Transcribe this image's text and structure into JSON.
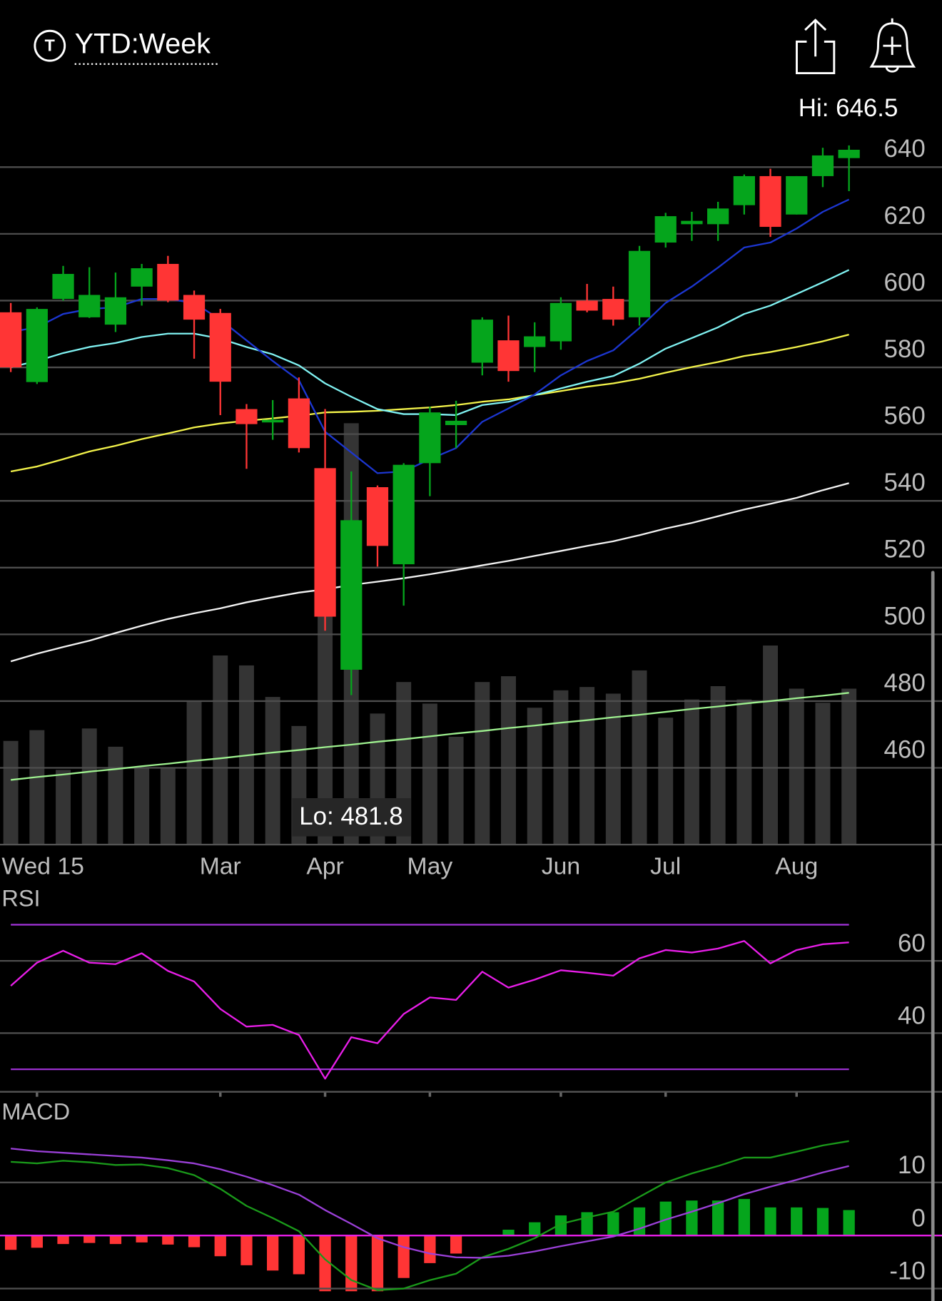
{
  "toolbar": {
    "icon_letter": "T",
    "range": "YTD:Week"
  },
  "chart_data": [
    {
      "type": "candlestick",
      "categories": [
        null,
        "Wed 15",
        null,
        null,
        null,
        null,
        null,
        null,
        "Mar",
        null,
        null,
        null,
        "Apr",
        null,
        null,
        null,
        "May",
        null,
        null,
        null,
        null,
        "Jun",
        null,
        null,
        null,
        "Jul",
        null,
        null,
        null,
        null,
        "Aug",
        null,
        null
      ],
      "open": [
        596.5,
        575.6,
        600.5,
        595,
        592.8,
        604.2,
        611,
        601.7,
        596.3,
        567.5,
        563.5,
        570.7,
        549.8,
        489.4,
        544.1,
        521,
        551.3,
        562.7,
        581.4,
        588.1,
        586.1,
        587.8,
        600,
        600.5,
        595,
        617.4,
        622.9,
        622.9,
        628.6,
        637.3,
        625.8,
        637.3,
        642.7
      ],
      "high": [
        599.3,
        598,
        610.4,
        610,
        608.4,
        611,
        613.4,
        603,
        597.5,
        569,
        570.2,
        577,
        567.5,
        548.8,
        544.6,
        551.3,
        568.2,
        570,
        595,
        595.5,
        593.5,
        601,
        605,
        604.2,
        616.4,
        626.3,
        626.6,
        629.6,
        637.8,
        639.5,
        637.3,
        645.8,
        646.5
      ],
      "low": [
        578.6,
        575,
        600,
        594.8,
        590.6,
        598.5,
        599.5,
        582.6,
        565.7,
        549.6,
        558.3,
        554.5,
        501.1,
        481.8,
        520.3,
        508.6,
        541.4,
        555.8,
        577.6,
        575.7,
        578.6,
        585.3,
        596.5,
        592.5,
        592.5,
        615.9,
        617.9,
        617.9,
        625.8,
        619.1,
        625.8,
        634,
        632.8
      ],
      "close": [
        580,
        597.5,
        608,
        601.7,
        601,
        609.7,
        600,
        594.3,
        575.7,
        563,
        564.3,
        555.8,
        505.3,
        534.2,
        526.5,
        550.8,
        566.5,
        564,
        594.3,
        578.9,
        589.3,
        599.3,
        597,
        594.3,
        614.9,
        625.3,
        623.9,
        627.6,
        637.3,
        622.1,
        637.3,
        643.5,
        645.2
      ],
      "up_color": "#05a51c",
      "down_color": "#ff3535",
      "series": [
        {
          "color": "#f2f2f2",
          "values": [
            491.9,
            494.2,
            496.2,
            498.1,
            500.4,
            502.6,
            504.6,
            506.3,
            507.8,
            509.6,
            511.1,
            512.5,
            513.5,
            514.8,
            515.8,
            516.8,
            518,
            519.3,
            520.7,
            522,
            523.5,
            525,
            526.5,
            527.9,
            529.7,
            531.7,
            533.4,
            535.4,
            537.4,
            539.1,
            540.9,
            543.2,
            545.3
          ]
        },
        {
          "color": "#f2f24a",
          "values": [
            548.8,
            550.3,
            552.5,
            554.8,
            556.5,
            558.5,
            560.2,
            562,
            563.2,
            564,
            564.7,
            565.5,
            566.5,
            566.7,
            567,
            567.5,
            568,
            568.7,
            569.7,
            570.4,
            571.7,
            572.9,
            574.2,
            575.2,
            576.6,
            578.4,
            580.1,
            581.6,
            583.4,
            584.6,
            586.1,
            587.8,
            589.8
          ]
        },
        {
          "color": "#80f2f2",
          "values": [
            580.1,
            581.9,
            584.3,
            586.1,
            587.3,
            589.1,
            590.1,
            590.1,
            588.6,
            586.1,
            583.9,
            580.6,
            575.2,
            571.2,
            567.5,
            566,
            566,
            565.7,
            568.7,
            569.7,
            571.7,
            573.7,
            575.7,
            577.4,
            581.1,
            585.6,
            588.8,
            592,
            596,
            598.5,
            602,
            605.5,
            609.2
          ]
        },
        {
          "color": "#1c36d0",
          "values": [
            590.6,
            592,
            596,
            597.5,
            598,
            600.5,
            600.5,
            599.3,
            594.3,
            588.1,
            581.9,
            576.1,
            560.7,
            554.5,
            548.3,
            548.8,
            552.5,
            555.8,
            563.7,
            567.7,
            571.9,
            577.6,
            581.9,
            585.1,
            591.8,
            599.3,
            604.2,
            609.9,
            615.9,
            617.4,
            621.6,
            626.6,
            630.3
          ]
        }
      ],
      "volume": {
        "color": "#343434",
        "vlim": [
          0,
          1730
        ],
        "values": [
          250,
          276,
          180,
          280,
          236,
          186,
          186,
          346,
          456,
          432,
          356,
          286,
          596,
          1016,
          316,
          392,
          340,
          260,
          392,
          406,
          330,
          372,
          380,
          364,
          420,
          306,
          350,
          382,
          350,
          480,
          376,
          342,
          376
        ],
        "ma_color": "#9ef08f",
        "ma": [
          156,
          163,
          169,
          176,
          182,
          189,
          195,
          202,
          208,
          215,
          222,
          228,
          235,
          241,
          248,
          254,
          261,
          268,
          274,
          281,
          287,
          294,
          300,
          307,
          313,
          320,
          327,
          333,
          340,
          346,
          353,
          359,
          366
        ]
      },
      "annotations": [
        "Hi: 646.5",
        "Lo: 481.8"
      ],
      "ylim": [
        437,
        652
      ],
      "yticks": [
        460,
        480,
        500,
        520,
        540,
        560,
        580,
        600,
        620,
        640
      ],
      "grid": true
    },
    {
      "type": "line",
      "title": "RSI",
      "series": [
        {
          "color": "#e81ee8",
          "values": [
            53.1,
            59.5,
            62.8,
            59.5,
            59.1,
            62.1,
            57.2,
            54.3,
            46.7,
            41.8,
            42.3,
            39.5,
            27.4,
            38.9,
            37.2,
            45.3,
            49.9,
            49.2,
            57,
            52.6,
            54.8,
            57.4,
            56.7,
            55.9,
            60.7,
            63,
            62.3,
            63.4,
            65.5,
            59.3,
            63,
            64.6,
            65.1
          ]
        }
      ],
      "bands": [
        70,
        30
      ],
      "band_color": "#9b30d0",
      "ylim": [
        24,
        80
      ],
      "yticks": [
        40,
        60
      ],
      "grid": true
    },
    {
      "type": "macd",
      "title": "MACD",
      "series": [
        {
          "color": "#1a9a1a",
          "values": [
            13.9,
            13.6,
            14.1,
            13.8,
            13.3,
            13.4,
            12.7,
            11.4,
            8.8,
            5.6,
            3.3,
            0.8,
            -4.5,
            -8.4,
            -10.3,
            -10,
            -8.4,
            -7.2,
            -4.1,
            -2.5,
            -0.5,
            2.2,
            3.4,
            4.5,
            7.3,
            10,
            11.7,
            13.1,
            14.7,
            14.7,
            15.8,
            17,
            17.8
          ]
        },
        {
          "color": "#9b40d8",
          "values": [
            16.4,
            15.9,
            15.6,
            15.3,
            15,
            14.7,
            14.2,
            13.6,
            12.5,
            11.1,
            9.5,
            7.7,
            4.8,
            2.2,
            -0.5,
            -2.2,
            -3.4,
            -4.1,
            -4.2,
            -3.8,
            -3,
            -2,
            -1.1,
            -0.2,
            1.3,
            3,
            4.5,
            6.1,
            7.8,
            9.2,
            10.5,
            11.9,
            13.1
          ]
        }
      ],
      "histogram": {
        "pos_color": "#05a51c",
        "neg_color": "#ff3535",
        "values": [
          -2.7,
          -2.3,
          -1.6,
          -1.4,
          -1.6,
          -1.3,
          -1.7,
          -2.2,
          -3.9,
          -5.6,
          -6.6,
          -7.3,
          -10.5,
          -10.5,
          -10.5,
          -8,
          -5.2,
          -3.4,
          0,
          1.1,
          2.5,
          3.8,
          4.4,
          4.4,
          5.3,
          6.4,
          6.6,
          6.6,
          6.9,
          5.3,
          5.3,
          5.2,
          4.8
        ]
      },
      "zero_line_color": "#e81ee8",
      "ylim": [
        -12,
        26
      ],
      "yticks": [
        -10,
        0,
        10
      ],
      "grid": true
    }
  ]
}
